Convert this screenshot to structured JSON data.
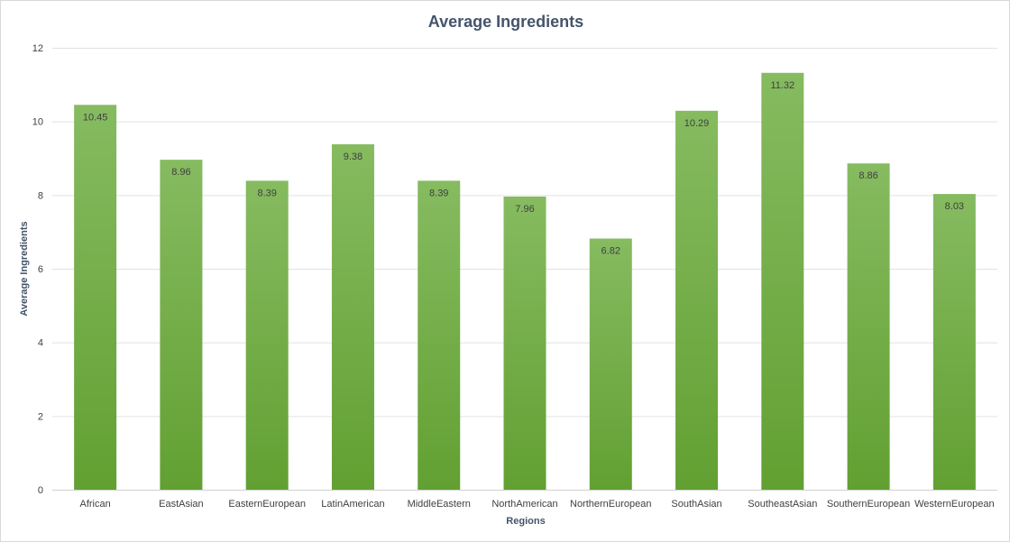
{
  "chart_data": {
    "type": "bar",
    "title": "Average Ingredients",
    "xlabel": "Regions",
    "ylabel": "Average Ingredients",
    "categories": [
      "African",
      "EastAsian",
      "EasternEuropean",
      "LatinAmerican",
      "MiddleEastern",
      "NorthAmerican",
      "NorthernEuropean",
      "SouthAsian",
      "SoutheastAsian",
      "SouthernEuropean",
      "WesternEuropean"
    ],
    "values": [
      10.45,
      8.96,
      8.39,
      9.38,
      8.39,
      7.96,
      6.82,
      10.29,
      11.32,
      8.86,
      8.03
    ],
    "data_labels": [
      "10.45",
      "8.96",
      "8.39",
      "9.38",
      "8.39",
      "7.96",
      "6.82",
      "10.29",
      "11.32",
      "8.86",
      "8.03"
    ],
    "ylim": [
      0,
      12
    ],
    "yticks": [
      "0",
      "2",
      "4",
      "6",
      "8",
      "10",
      "12"
    ],
    "grid": true,
    "legend": "none",
    "colors": {
      "bar_top": "#86bb60",
      "bar_bottom": "#62a032"
    }
  }
}
